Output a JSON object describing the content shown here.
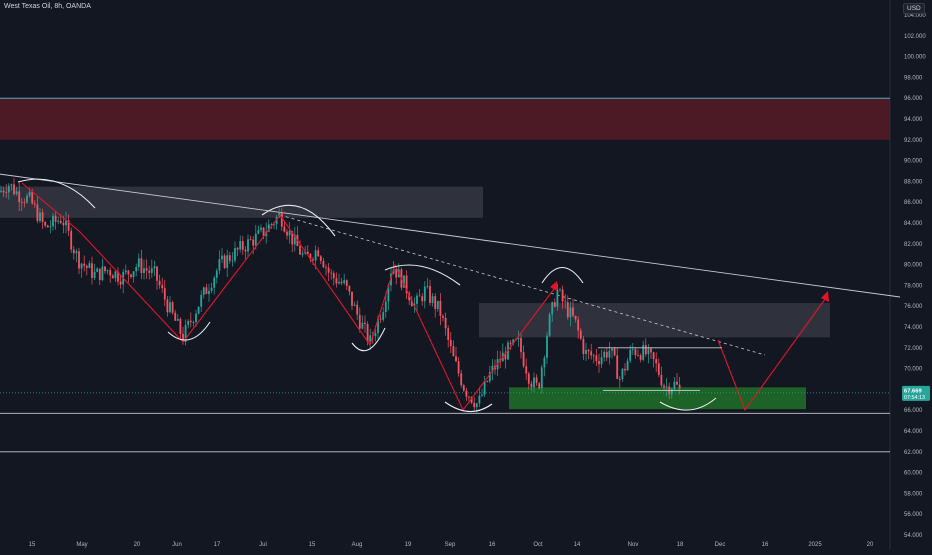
{
  "header": {
    "title": "West Texas Oil, 8h, OANDA",
    "currency": "USD"
  },
  "price_badge": {
    "price": "67.669",
    "countdown": "07:54:13"
  },
  "colors": {
    "background": "#131722",
    "candle_up": "#26a69a",
    "candle_down": "#f7525f",
    "drawn_lines": "#e0152b",
    "resistance_zone": "#571b25",
    "supply_box": "#393c47",
    "demand_zone": "#1f6b28",
    "badge": "#26a69a"
  },
  "chart_data": {
    "type": "candlestick",
    "instrument": "West Texas Oil",
    "timeframe": "8h",
    "ylim": [
      54,
      104
    ],
    "y_ticks": [
      "104.000",
      "102.000",
      "100.000",
      "98.000",
      "96.000",
      "94.000",
      "92.000",
      "90.000",
      "88.000",
      "86.000",
      "84.000",
      "82.000",
      "80.000",
      "78.000",
      "76.000",
      "74.000",
      "72.000",
      "70.000",
      "68.000",
      "66.000",
      "64.000",
      "62.000",
      "60.000",
      "58.000",
      "56.000",
      "54.000"
    ],
    "x_ticks": [
      "15",
      "May",
      "20",
      "Jun",
      "17",
      "Jul",
      "15",
      "Aug",
      "19",
      "Sep",
      "16",
      "Oct",
      "14",
      "Nov",
      "18",
      "Dec",
      "16",
      "2025",
      "20"
    ],
    "anchors": [
      {
        "x": 0,
        "p": 87.0
      },
      {
        "x": 8,
        "p": 87.8
      },
      {
        "x": 18,
        "p": 86.8
      },
      {
        "x": 30,
        "p": 86.2
      },
      {
        "x": 45,
        "p": 83.5
      },
      {
        "x": 62,
        "p": 84.5
      },
      {
        "x": 78,
        "p": 80.5
      },
      {
        "x": 95,
        "p": 79.0
      },
      {
        "x": 108,
        "p": 79.5
      },
      {
        "x": 122,
        "p": 78.8
      },
      {
        "x": 138,
        "p": 80.0
      },
      {
        "x": 155,
        "p": 79.0
      },
      {
        "x": 168,
        "p": 76.0
      },
      {
        "x": 183,
        "p": 73.0
      },
      {
        "x": 200,
        "p": 76.5
      },
      {
        "x": 220,
        "p": 80.0
      },
      {
        "x": 240,
        "p": 81.5
      },
      {
        "x": 262,
        "p": 83.0
      },
      {
        "x": 280,
        "p": 84.8
      },
      {
        "x": 292,
        "p": 82.5
      },
      {
        "x": 305,
        "p": 80.5
      },
      {
        "x": 318,
        "p": 81.5
      },
      {
        "x": 330,
        "p": 79.0
      },
      {
        "x": 345,
        "p": 78.0
      },
      {
        "x": 358,
        "p": 75.0
      },
      {
        "x": 370,
        "p": 72.5
      },
      {
        "x": 383,
        "p": 76.0
      },
      {
        "x": 392,
        "p": 80.0
      },
      {
        "x": 405,
        "p": 78.0
      },
      {
        "x": 415,
        "p": 76.0
      },
      {
        "x": 425,
        "p": 77.5
      },
      {
        "x": 440,
        "p": 75.5
      },
      {
        "x": 453,
        "p": 71.0
      },
      {
        "x": 465,
        "p": 68.0
      },
      {
        "x": 478,
        "p": 66.5
      },
      {
        "x": 490,
        "p": 69.5
      },
      {
        "x": 505,
        "p": 71.5
      },
      {
        "x": 518,
        "p": 72.5
      },
      {
        "x": 530,
        "p": 69.0
      },
      {
        "x": 538,
        "p": 68.0
      },
      {
        "x": 548,
        "p": 74.0
      },
      {
        "x": 557,
        "p": 77.5
      },
      {
        "x": 565,
        "p": 76.0
      },
      {
        "x": 575,
        "p": 74.5
      },
      {
        "x": 585,
        "p": 71.5
      },
      {
        "x": 598,
        "p": 71.0
      },
      {
        "x": 610,
        "p": 71.8
      },
      {
        "x": 620,
        "p": 69.0
      },
      {
        "x": 632,
        "p": 71.8
      },
      {
        "x": 645,
        "p": 71.5
      },
      {
        "x": 655,
        "p": 70.5
      },
      {
        "x": 665,
        "p": 68.2
      },
      {
        "x": 675,
        "p": 68.5
      },
      {
        "x": 681,
        "p": 67.67
      }
    ],
    "last_price": 67.669,
    "drawings": {
      "resistance_zone": [
        92.0,
        96.0
      ],
      "horizontal_lines": [
        96.0,
        65.7,
        62.0
      ],
      "dotted_last_price_line": 67.669,
      "supply_box_left": [
        84.5,
        87.5
      ],
      "supply_box_right": [
        73.0,
        76.3
      ],
      "demand_zone": [
        66.1,
        68.2
      ],
      "trendline_from": 88.7,
      "trendline_to": 77.6
    }
  }
}
